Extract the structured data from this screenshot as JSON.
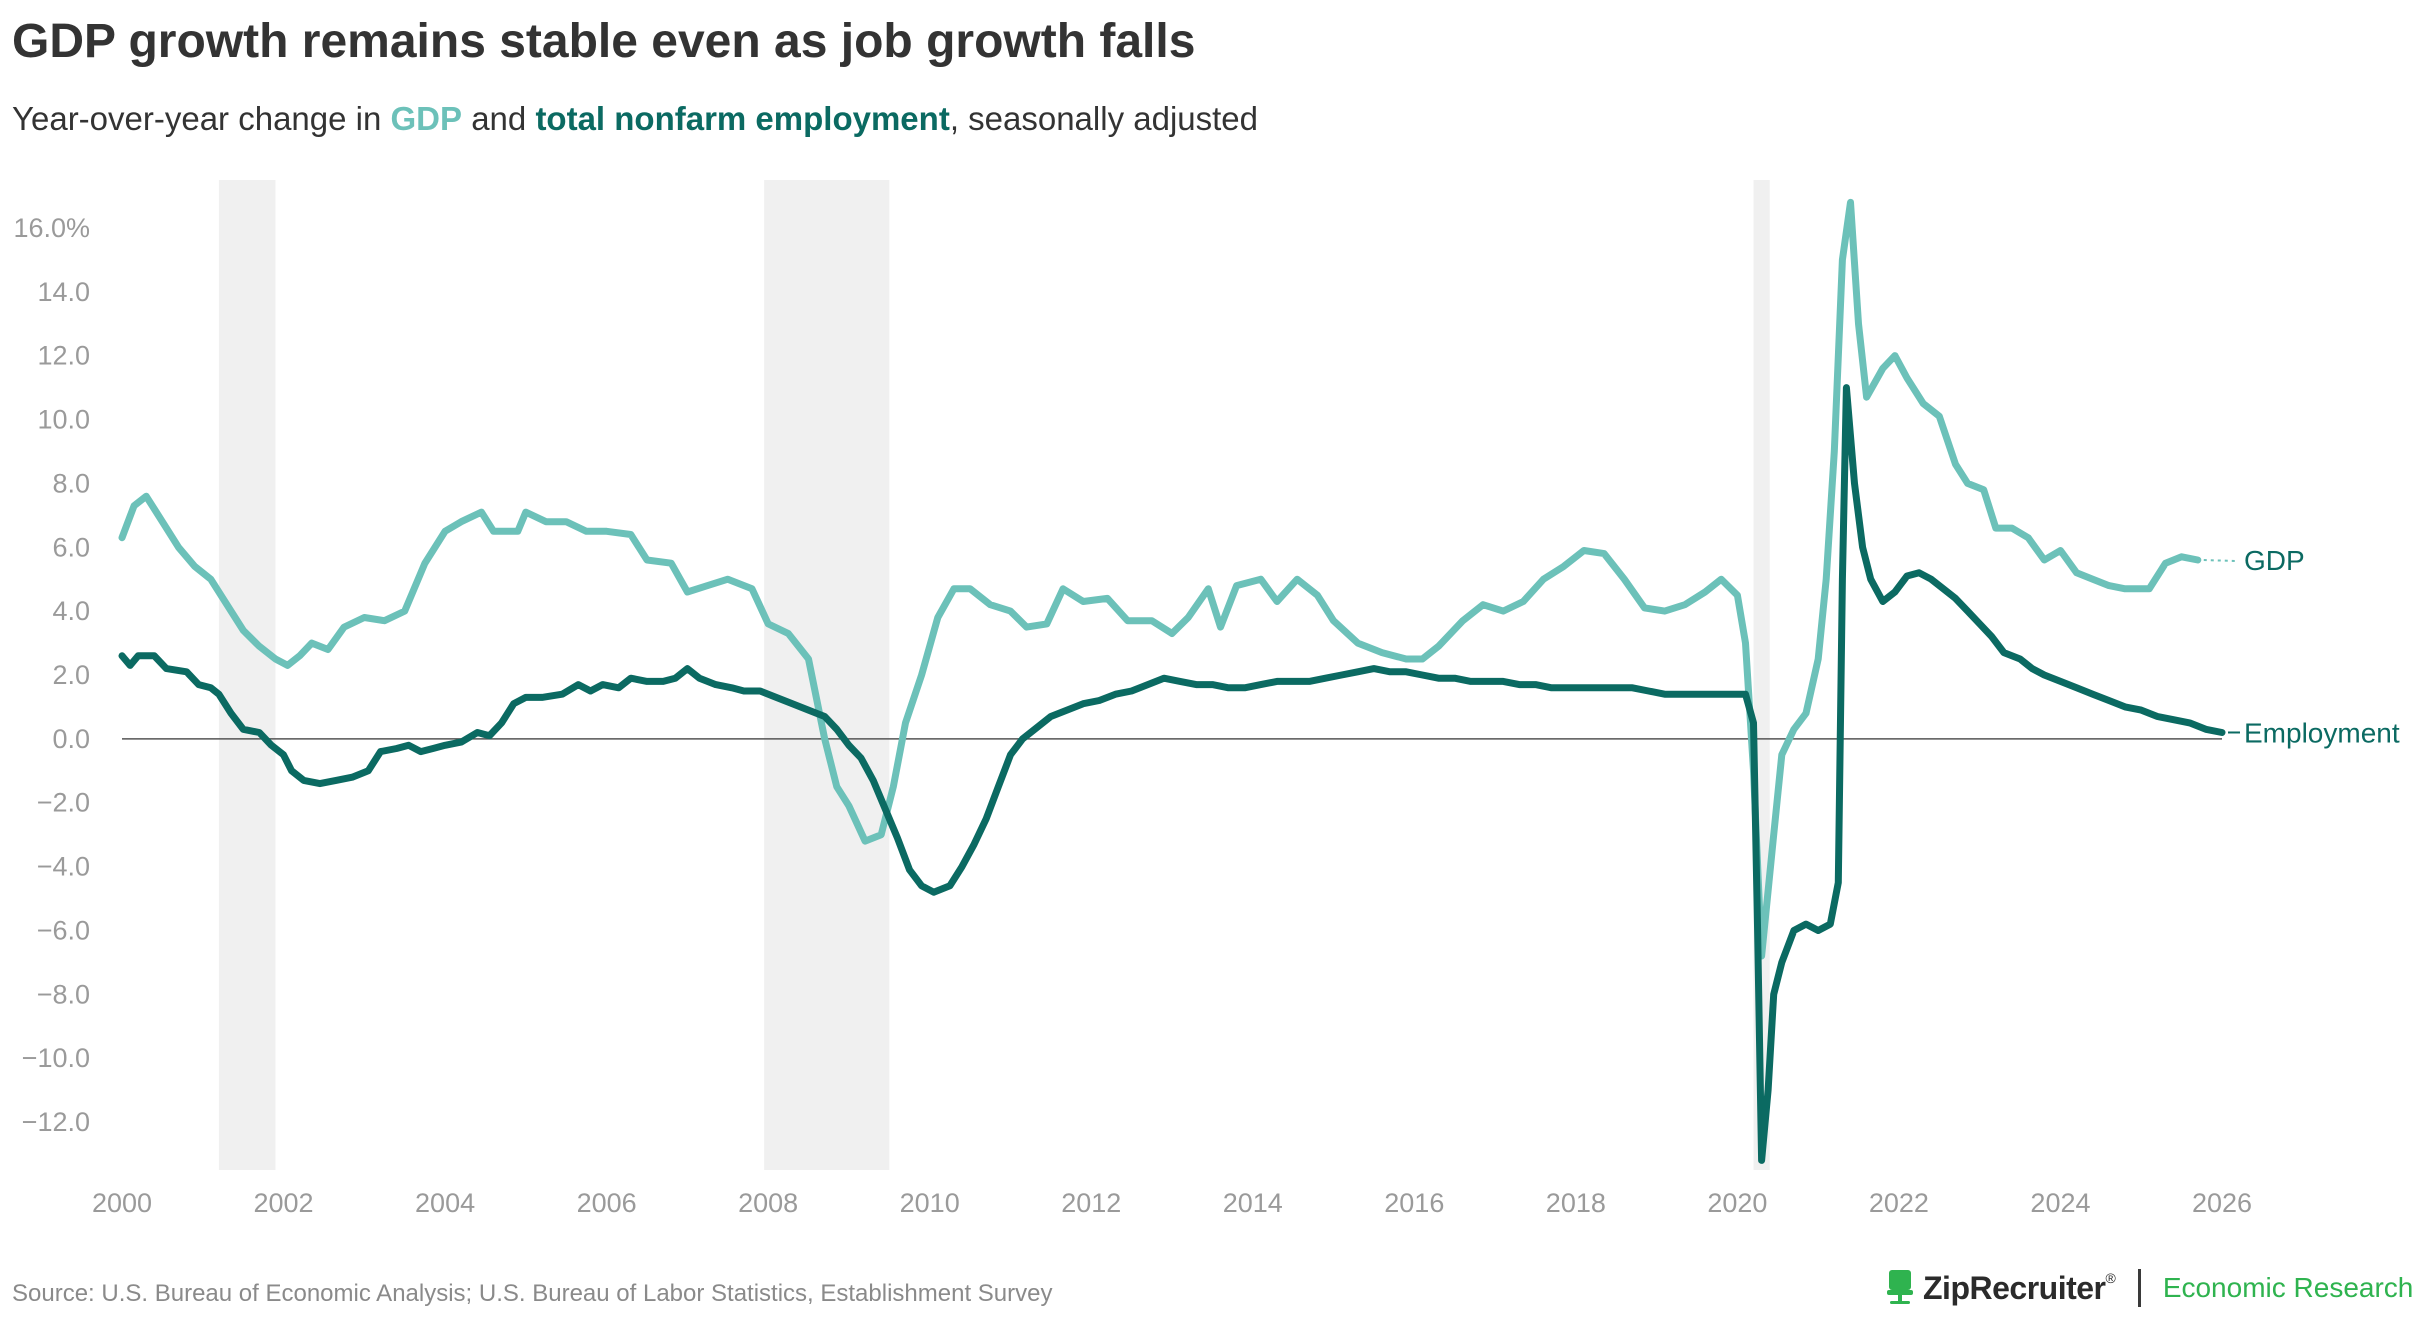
{
  "colors": {
    "gdp": "#6cc1b9",
    "employment": "#0b6a62",
    "recession": "#f0f0f0",
    "text": "#333333",
    "tick": "#9a9a9a",
    "brand_green": "#2fb34f"
  },
  "chart_data": {
    "type": "line",
    "title": "GDP growth remains stable even as job growth falls",
    "subtitle": {
      "prefix": "Year-over-year change in ",
      "gdp": "GDP",
      "middle": " and ",
      "employment": "total nonfarm employment",
      "suffix": ", seasonally adjusted"
    },
    "xlabel": "",
    "ylabel": "",
    "xlim": [
      2000,
      2026
    ],
    "ylim": [
      -13.5,
      17.5
    ],
    "x_ticks": [
      "2000",
      "2002",
      "2004",
      "2006",
      "2008",
      "2010",
      "2012",
      "2014",
      "2016",
      "2018",
      "2020",
      "2022",
      "2024",
      "2026"
    ],
    "y_ticks": [
      {
        "v": 16,
        "label": "16.0%"
      },
      {
        "v": 14,
        "label": "14.0"
      },
      {
        "v": 12,
        "label": "12.0"
      },
      {
        "v": 10,
        "label": "10.0"
      },
      {
        "v": 8,
        "label": "8.0"
      },
      {
        "v": 6,
        "label": "6.0"
      },
      {
        "v": 4,
        "label": "4.0"
      },
      {
        "v": 2,
        "label": "2.0"
      },
      {
        "v": 0,
        "label": "0.0"
      },
      {
        "v": -2,
        "label": "−2.0"
      },
      {
        "v": -4,
        "label": "−4.0"
      },
      {
        "v": -6,
        "label": "−6.0"
      },
      {
        "v": -8,
        "label": "−8.0"
      },
      {
        "v": -10,
        "label": "−10.0"
      },
      {
        "v": -12,
        "label": "−12.0"
      }
    ],
    "recessions": [
      [
        2001.2,
        2001.9
      ],
      [
        2007.95,
        2009.5
      ],
      [
        2020.2,
        2020.4
      ]
    ],
    "series": [
      {
        "name": "GDP",
        "label": "GDP",
        "points": [
          [
            2000.0,
            6.3
          ],
          [
            2000.15,
            7.3
          ],
          [
            2000.3,
            7.6
          ],
          [
            2000.5,
            6.8
          ],
          [
            2000.7,
            6.0
          ],
          [
            2000.9,
            5.4
          ],
          [
            2001.1,
            5.0
          ],
          [
            2001.3,
            4.2
          ],
          [
            2001.5,
            3.4
          ],
          [
            2001.7,
            2.9
          ],
          [
            2001.9,
            2.5
          ],
          [
            2002.05,
            2.3
          ],
          [
            2002.2,
            2.6
          ],
          [
            2002.35,
            3.0
          ],
          [
            2002.55,
            2.8
          ],
          [
            2002.75,
            3.5
          ],
          [
            2003.0,
            3.8
          ],
          [
            2003.25,
            3.7
          ],
          [
            2003.5,
            4.0
          ],
          [
            2003.75,
            5.5
          ],
          [
            2004.0,
            6.5
          ],
          [
            2004.2,
            6.8
          ],
          [
            2004.45,
            7.1
          ],
          [
            2004.6,
            6.5
          ],
          [
            2004.9,
            6.5
          ],
          [
            2005.0,
            7.1
          ],
          [
            2005.25,
            6.8
          ],
          [
            2005.5,
            6.8
          ],
          [
            2005.75,
            6.5
          ],
          [
            2006.0,
            6.5
          ],
          [
            2006.3,
            6.4
          ],
          [
            2006.5,
            5.6
          ],
          [
            2006.8,
            5.5
          ],
          [
            2007.0,
            4.6
          ],
          [
            2007.25,
            4.8
          ],
          [
            2007.5,
            5.0
          ],
          [
            2007.8,
            4.7
          ],
          [
            2008.0,
            3.6
          ],
          [
            2008.25,
            3.3
          ],
          [
            2008.5,
            2.5
          ],
          [
            2008.7,
            0.0
          ],
          [
            2008.85,
            -1.5
          ],
          [
            2009.0,
            -2.1
          ],
          [
            2009.2,
            -3.2
          ],
          [
            2009.4,
            -3.0
          ],
          [
            2009.55,
            -1.5
          ],
          [
            2009.7,
            0.5
          ],
          [
            2009.9,
            2.0
          ],
          [
            2010.1,
            3.8
          ],
          [
            2010.3,
            4.7
          ],
          [
            2010.5,
            4.7
          ],
          [
            2010.75,
            4.2
          ],
          [
            2011.0,
            4.0
          ],
          [
            2011.2,
            3.5
          ],
          [
            2011.45,
            3.6
          ],
          [
            2011.65,
            4.7
          ],
          [
            2011.9,
            4.3
          ],
          [
            2012.2,
            4.4
          ],
          [
            2012.45,
            3.7
          ],
          [
            2012.75,
            3.7
          ],
          [
            2013.0,
            3.3
          ],
          [
            2013.2,
            3.8
          ],
          [
            2013.45,
            4.7
          ],
          [
            2013.6,
            3.5
          ],
          [
            2013.8,
            4.8
          ],
          [
            2014.1,
            5.0
          ],
          [
            2014.3,
            4.3
          ],
          [
            2014.55,
            5.0
          ],
          [
            2014.8,
            4.5
          ],
          [
            2015.0,
            3.7
          ],
          [
            2015.3,
            3.0
          ],
          [
            2015.6,
            2.7
          ],
          [
            2015.9,
            2.5
          ],
          [
            2016.1,
            2.5
          ],
          [
            2016.3,
            2.9
          ],
          [
            2016.6,
            3.7
          ],
          [
            2016.85,
            4.2
          ],
          [
            2017.1,
            4.0
          ],
          [
            2017.35,
            4.3
          ],
          [
            2017.6,
            5.0
          ],
          [
            2017.85,
            5.4
          ],
          [
            2018.1,
            5.9
          ],
          [
            2018.35,
            5.8
          ],
          [
            2018.6,
            5.0
          ],
          [
            2018.85,
            4.1
          ],
          [
            2019.1,
            4.0
          ],
          [
            2019.35,
            4.2
          ],
          [
            2019.6,
            4.6
          ],
          [
            2019.8,
            5.0
          ],
          [
            2020.0,
            4.5
          ],
          [
            2020.1,
            3.0
          ],
          [
            2020.2,
            -1.0
          ],
          [
            2020.3,
            -6.8
          ],
          [
            2020.45,
            -3.0
          ],
          [
            2020.55,
            -0.5
          ],
          [
            2020.7,
            0.3
          ],
          [
            2020.85,
            0.8
          ],
          [
            2021.0,
            2.5
          ],
          [
            2021.1,
            5.0
          ],
          [
            2021.2,
            9.0
          ],
          [
            2021.3,
            15.0
          ],
          [
            2021.4,
            16.8
          ],
          [
            2021.5,
            13.0
          ],
          [
            2021.6,
            10.7
          ],
          [
            2021.8,
            11.6
          ],
          [
            2021.95,
            12.0
          ],
          [
            2022.1,
            11.3
          ],
          [
            2022.3,
            10.5
          ],
          [
            2022.5,
            10.1
          ],
          [
            2022.7,
            8.6
          ],
          [
            2022.85,
            8.0
          ],
          [
            2023.05,
            7.8
          ],
          [
            2023.2,
            6.6
          ],
          [
            2023.4,
            6.6
          ],
          [
            2023.6,
            6.3
          ],
          [
            2023.8,
            5.6
          ],
          [
            2024.0,
            5.9
          ],
          [
            2024.2,
            5.2
          ],
          [
            2024.4,
            5.0
          ],
          [
            2024.6,
            4.8
          ],
          [
            2024.8,
            4.7
          ],
          [
            2025.1,
            4.7
          ],
          [
            2025.3,
            5.5
          ],
          [
            2025.5,
            5.7
          ],
          [
            2025.7,
            5.6
          ]
        ]
      },
      {
        "name": "Employment",
        "label": "Employment",
        "points": [
          [
            2000.0,
            2.6
          ],
          [
            2000.1,
            2.3
          ],
          [
            2000.2,
            2.6
          ],
          [
            2000.4,
            2.6
          ],
          [
            2000.55,
            2.2
          ],
          [
            2000.8,
            2.1
          ],
          [
            2000.95,
            1.7
          ],
          [
            2001.1,
            1.6
          ],
          [
            2001.2,
            1.4
          ],
          [
            2001.35,
            0.8
          ],
          [
            2001.5,
            0.3
          ],
          [
            2001.7,
            0.2
          ],
          [
            2001.85,
            -0.2
          ],
          [
            2002.0,
            -0.5
          ],
          [
            2002.1,
            -1.0
          ],
          [
            2002.25,
            -1.3
          ],
          [
            2002.45,
            -1.4
          ],
          [
            2002.65,
            -1.3
          ],
          [
            2002.85,
            -1.2
          ],
          [
            2003.05,
            -1.0
          ],
          [
            2003.2,
            -0.4
          ],
          [
            2003.4,
            -0.3
          ],
          [
            2003.55,
            -0.2
          ],
          [
            2003.7,
            -0.4
          ],
          [
            2003.85,
            -0.3
          ],
          [
            2004.0,
            -0.2
          ],
          [
            2004.2,
            -0.1
          ],
          [
            2004.4,
            0.2
          ],
          [
            2004.55,
            0.1
          ],
          [
            2004.7,
            0.5
          ],
          [
            2004.85,
            1.1
          ],
          [
            2005.0,
            1.3
          ],
          [
            2005.2,
            1.3
          ],
          [
            2005.45,
            1.4
          ],
          [
            2005.65,
            1.7
          ],
          [
            2005.8,
            1.5
          ],
          [
            2005.95,
            1.7
          ],
          [
            2006.15,
            1.6
          ],
          [
            2006.3,
            1.9
          ],
          [
            2006.5,
            1.8
          ],
          [
            2006.7,
            1.8
          ],
          [
            2006.85,
            1.9
          ],
          [
            2007.0,
            2.2
          ],
          [
            2007.15,
            1.9
          ],
          [
            2007.35,
            1.7
          ],
          [
            2007.55,
            1.6
          ],
          [
            2007.7,
            1.5
          ],
          [
            2007.9,
            1.5
          ],
          [
            2008.1,
            1.3
          ],
          [
            2008.3,
            1.1
          ],
          [
            2008.5,
            0.9
          ],
          [
            2008.7,
            0.7
          ],
          [
            2008.85,
            0.3
          ],
          [
            2009.0,
            -0.2
          ],
          [
            2009.15,
            -0.6
          ],
          [
            2009.3,
            -1.3
          ],
          [
            2009.45,
            -2.2
          ],
          [
            2009.6,
            -3.1
          ],
          [
            2009.75,
            -4.1
          ],
          [
            2009.9,
            -4.6
          ],
          [
            2010.05,
            -4.8
          ],
          [
            2010.25,
            -4.6
          ],
          [
            2010.4,
            -4.0
          ],
          [
            2010.55,
            -3.3
          ],
          [
            2010.7,
            -2.5
          ],
          [
            2010.85,
            -1.5
          ],
          [
            2011.0,
            -0.5
          ],
          [
            2011.15,
            0.0
          ],
          [
            2011.35,
            0.4
          ],
          [
            2011.5,
            0.7
          ],
          [
            2011.7,
            0.9
          ],
          [
            2011.9,
            1.1
          ],
          [
            2012.1,
            1.2
          ],
          [
            2012.3,
            1.4
          ],
          [
            2012.5,
            1.5
          ],
          [
            2012.7,
            1.7
          ],
          [
            2012.9,
            1.9
          ],
          [
            2013.1,
            1.8
          ],
          [
            2013.3,
            1.7
          ],
          [
            2013.5,
            1.7
          ],
          [
            2013.7,
            1.6
          ],
          [
            2013.9,
            1.6
          ],
          [
            2014.1,
            1.7
          ],
          [
            2014.3,
            1.8
          ],
          [
            2014.5,
            1.8
          ],
          [
            2014.7,
            1.8
          ],
          [
            2014.9,
            1.9
          ],
          [
            2015.1,
            2.0
          ],
          [
            2015.3,
            2.1
          ],
          [
            2015.5,
            2.2
          ],
          [
            2015.7,
            2.1
          ],
          [
            2015.9,
            2.1
          ],
          [
            2016.1,
            2.0
          ],
          [
            2016.3,
            1.9
          ],
          [
            2016.5,
            1.9
          ],
          [
            2016.7,
            1.8
          ],
          [
            2016.9,
            1.8
          ],
          [
            2017.1,
            1.8
          ],
          [
            2017.3,
            1.7
          ],
          [
            2017.5,
            1.7
          ],
          [
            2017.7,
            1.6
          ],
          [
            2017.9,
            1.6
          ],
          [
            2018.1,
            1.6
          ],
          [
            2018.3,
            1.6
          ],
          [
            2018.5,
            1.6
          ],
          [
            2018.7,
            1.6
          ],
          [
            2018.9,
            1.5
          ],
          [
            2019.1,
            1.4
          ],
          [
            2019.3,
            1.4
          ],
          [
            2019.5,
            1.4
          ],
          [
            2019.7,
            1.4
          ],
          [
            2019.9,
            1.4
          ],
          [
            2020.0,
            1.4
          ],
          [
            2020.1,
            1.4
          ],
          [
            2020.2,
            0.5
          ],
          [
            2020.25,
            -6.0
          ],
          [
            2020.3,
            -13.2
          ],
          [
            2020.38,
            -11.0
          ],
          [
            2020.45,
            -8.0
          ],
          [
            2020.55,
            -7.0
          ],
          [
            2020.7,
            -6.0
          ],
          [
            2020.85,
            -5.8
          ],
          [
            2021.0,
            -6.0
          ],
          [
            2021.15,
            -5.8
          ],
          [
            2021.25,
            -4.5
          ],
          [
            2021.3,
            5.0
          ],
          [
            2021.35,
            11.0
          ],
          [
            2021.45,
            8.0
          ],
          [
            2021.55,
            6.0
          ],
          [
            2021.65,
            5.0
          ],
          [
            2021.8,
            4.3
          ],
          [
            2021.95,
            4.6
          ],
          [
            2022.1,
            5.1
          ],
          [
            2022.25,
            5.2
          ],
          [
            2022.4,
            5.0
          ],
          [
            2022.55,
            4.7
          ],
          [
            2022.7,
            4.4
          ],
          [
            2022.85,
            4.0
          ],
          [
            2023.0,
            3.6
          ],
          [
            2023.15,
            3.2
          ],
          [
            2023.3,
            2.7
          ],
          [
            2023.5,
            2.5
          ],
          [
            2023.65,
            2.2
          ],
          [
            2023.8,
            2.0
          ],
          [
            2024.0,
            1.8
          ],
          [
            2024.2,
            1.6
          ],
          [
            2024.4,
            1.4
          ],
          [
            2024.6,
            1.2
          ],
          [
            2024.8,
            1.0
          ],
          [
            2025.0,
            0.9
          ],
          [
            2025.2,
            0.7
          ],
          [
            2025.4,
            0.6
          ],
          [
            2025.6,
            0.5
          ],
          [
            2025.8,
            0.3
          ],
          [
            2026.0,
            0.2
          ]
        ]
      }
    ]
  },
  "footer": {
    "source": "Source: U.S. Bureau of Economic Analysis; U.S. Bureau of Labor Statistics, Establishment Survey",
    "brand": "ZipRecruiter",
    "brand_mark": "®",
    "brand_icon": "ziprecruiter-chair-icon",
    "unit": "Economic Research"
  }
}
